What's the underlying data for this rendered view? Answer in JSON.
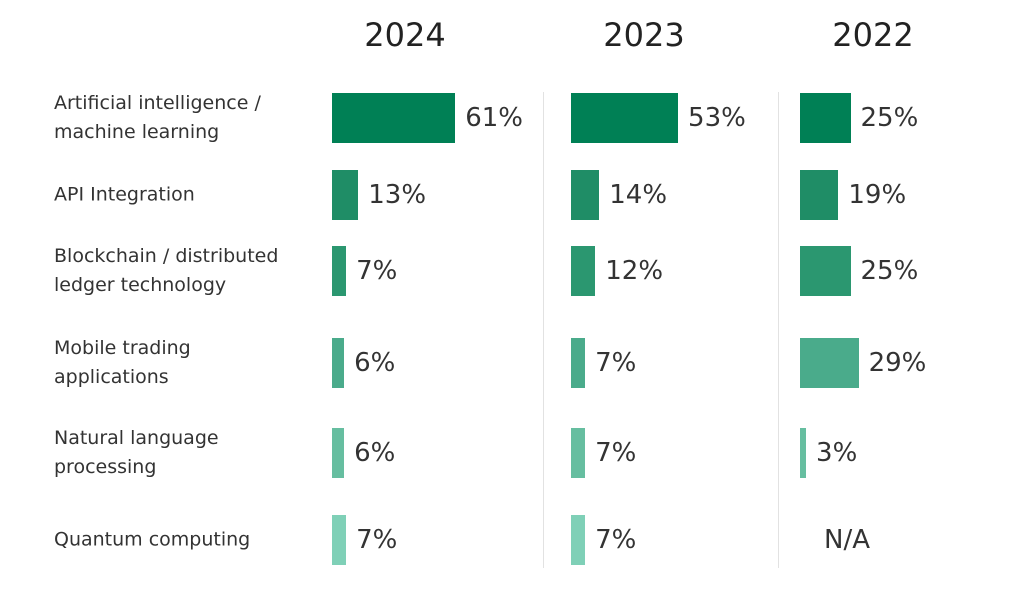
{
  "chart_data": {
    "type": "bar",
    "categories": [
      "Artificial intelligence / machine learning",
      "API Integration",
      "Blockchain / distributed ledger technology",
      "Mobile trading applications",
      "Natural language processing",
      "Quantum computing"
    ],
    "colors": [
      "#008055",
      "#1f8d66",
      "#2b9770",
      "#4aab8b",
      "#66bea0",
      "#7fd0b7"
    ],
    "series": [
      {
        "name": "2024",
        "values": [
          61,
          13,
          7,
          6,
          6,
          7
        ],
        "value_labels": [
          "61%",
          "13%",
          "7%",
          "6%",
          "6%",
          "7%"
        ]
      },
      {
        "name": "2023",
        "values": [
          53,
          14,
          12,
          7,
          7,
          7
        ],
        "value_labels": [
          "53%",
          "14%",
          "12%",
          "7%",
          "7%",
          "7%"
        ]
      },
      {
        "name": "2022",
        "values": [
          25,
          19,
          25,
          29,
          3,
          null
        ],
        "value_labels": [
          "25%",
          "19%",
          "25%",
          "29%",
          "3%",
          "N/A"
        ]
      }
    ]
  }
}
